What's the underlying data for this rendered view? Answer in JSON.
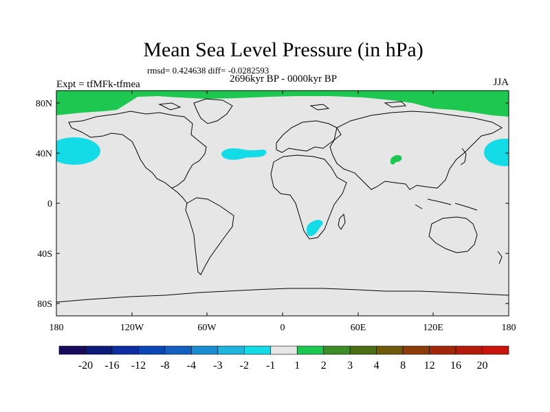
{
  "title": "Mean Sea Level Pressure (in hPa)",
  "stats": "rmsd= 0.424638 diff= -0.0282593",
  "left_label": "Expt = tfMFk-tfmea",
  "center_label": "2696kyr BP - 0000kyr BP",
  "right_label": "JJA",
  "map": {
    "background_color": "#e6e6e6",
    "lon_ticks": [
      "180",
      "120W",
      "60W",
      "0",
      "60E",
      "120E",
      "180"
    ],
    "lat_ticks": [
      "80N",
      "40N",
      "0",
      "40S",
      "80S"
    ]
  },
  "colorbar": {
    "colors": [
      "#1a0a5c",
      "#0c1a78",
      "#0c2ea0",
      "#0a46b4",
      "#1460c0",
      "#1a8cd2",
      "#1eb4dc",
      "#14dce6",
      "#e6e6e6",
      "#1ec850",
      "#3c8c28",
      "#4c6e14",
      "#6e5a0a",
      "#8c3c0a",
      "#a02808",
      "#b41c0a",
      "#c8140a"
    ],
    "labels": [
      "-20",
      "-16",
      "-12",
      "-8",
      "-4",
      "-3",
      "-2",
      "-1",
      "1",
      "2",
      "3",
      "4",
      "8",
      "12",
      "16",
      "20"
    ]
  }
}
